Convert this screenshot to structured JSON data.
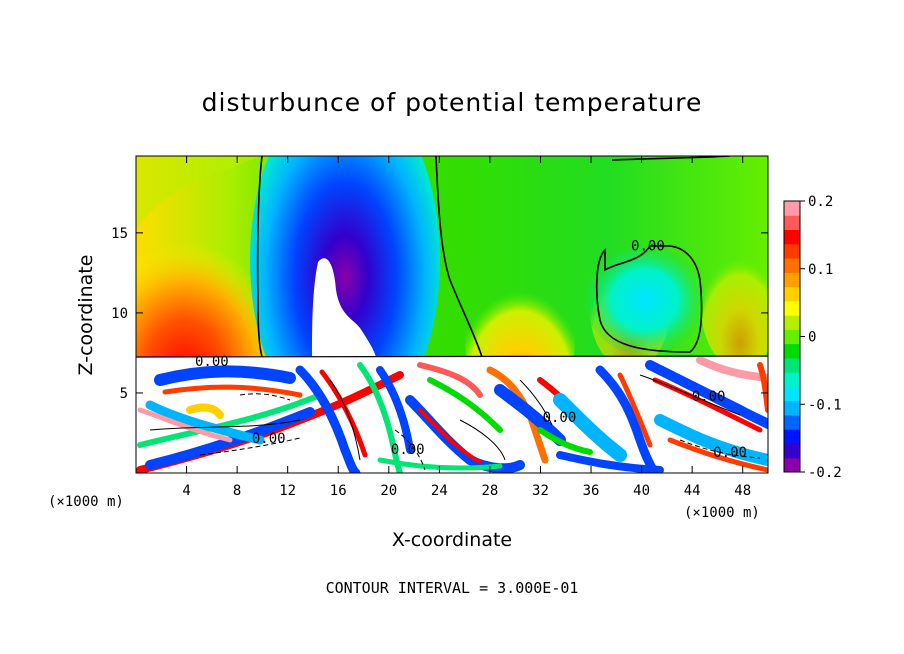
{
  "chart_data": {
    "type": "heatmap",
    "title": "disturbunce of potential temperature",
    "xlabel": "X-coordinate",
    "ylabel": "Z-coordinate",
    "x_unit_left": "(×1000 m)",
    "x_unit_right": "(×1000 m)",
    "xlim": [
      0,
      50
    ],
    "ylim": [
      0,
      19.8
    ],
    "x_ticks": [
      4,
      8,
      12,
      16,
      20,
      24,
      28,
      32,
      36,
      40,
      44,
      48
    ],
    "y_ticks": [
      5,
      10,
      15
    ],
    "colorbar": {
      "range": [
        -0.2,
        0.2
      ],
      "ticks": [
        {
          "value": 0.2,
          "label": "0.2"
        },
        {
          "value": 0.1,
          "label": "0.1"
        },
        {
          "value": 0,
          "label": "0"
        },
        {
          "value": -0.1,
          "label": "-0.1"
        },
        {
          "value": -0.2,
          "label": "-0.2"
        }
      ],
      "colors": [
        "#8a00aa",
        "#3300cc",
        "#0015ff",
        "#0066ff",
        "#00b4ff",
        "#00e5ff",
        "#00f2c8",
        "#00e676",
        "#00dc00",
        "#66ee00",
        "#b4f000",
        "#ffff00",
        "#ffd000",
        "#ffa000",
        "#ff7000",
        "#ff3c00",
        "#ff0000",
        "#ff5a5a",
        "#ff9aa6"
      ]
    },
    "contour_labels": [
      {
        "text": "0.00",
        "x": 40.5,
        "z": 14.2
      },
      {
        "text": "0.00",
        "x": 6.0,
        "z": 7.0
      },
      {
        "text": "0.00",
        "x": 10.5,
        "z": 2.2
      },
      {
        "text": "0.00",
        "x": 21.5,
        "z": 1.5
      },
      {
        "text": "0.00",
        "x": 33.5,
        "z": 3.5
      },
      {
        "text": "0.00",
        "x": 45.3,
        "z": 4.8
      },
      {
        "text": "0.00",
        "x": 47.0,
        "z": 1.3
      }
    ],
    "contour_interval": "CONTOUR INTERVAL = 3.000E-01"
  }
}
